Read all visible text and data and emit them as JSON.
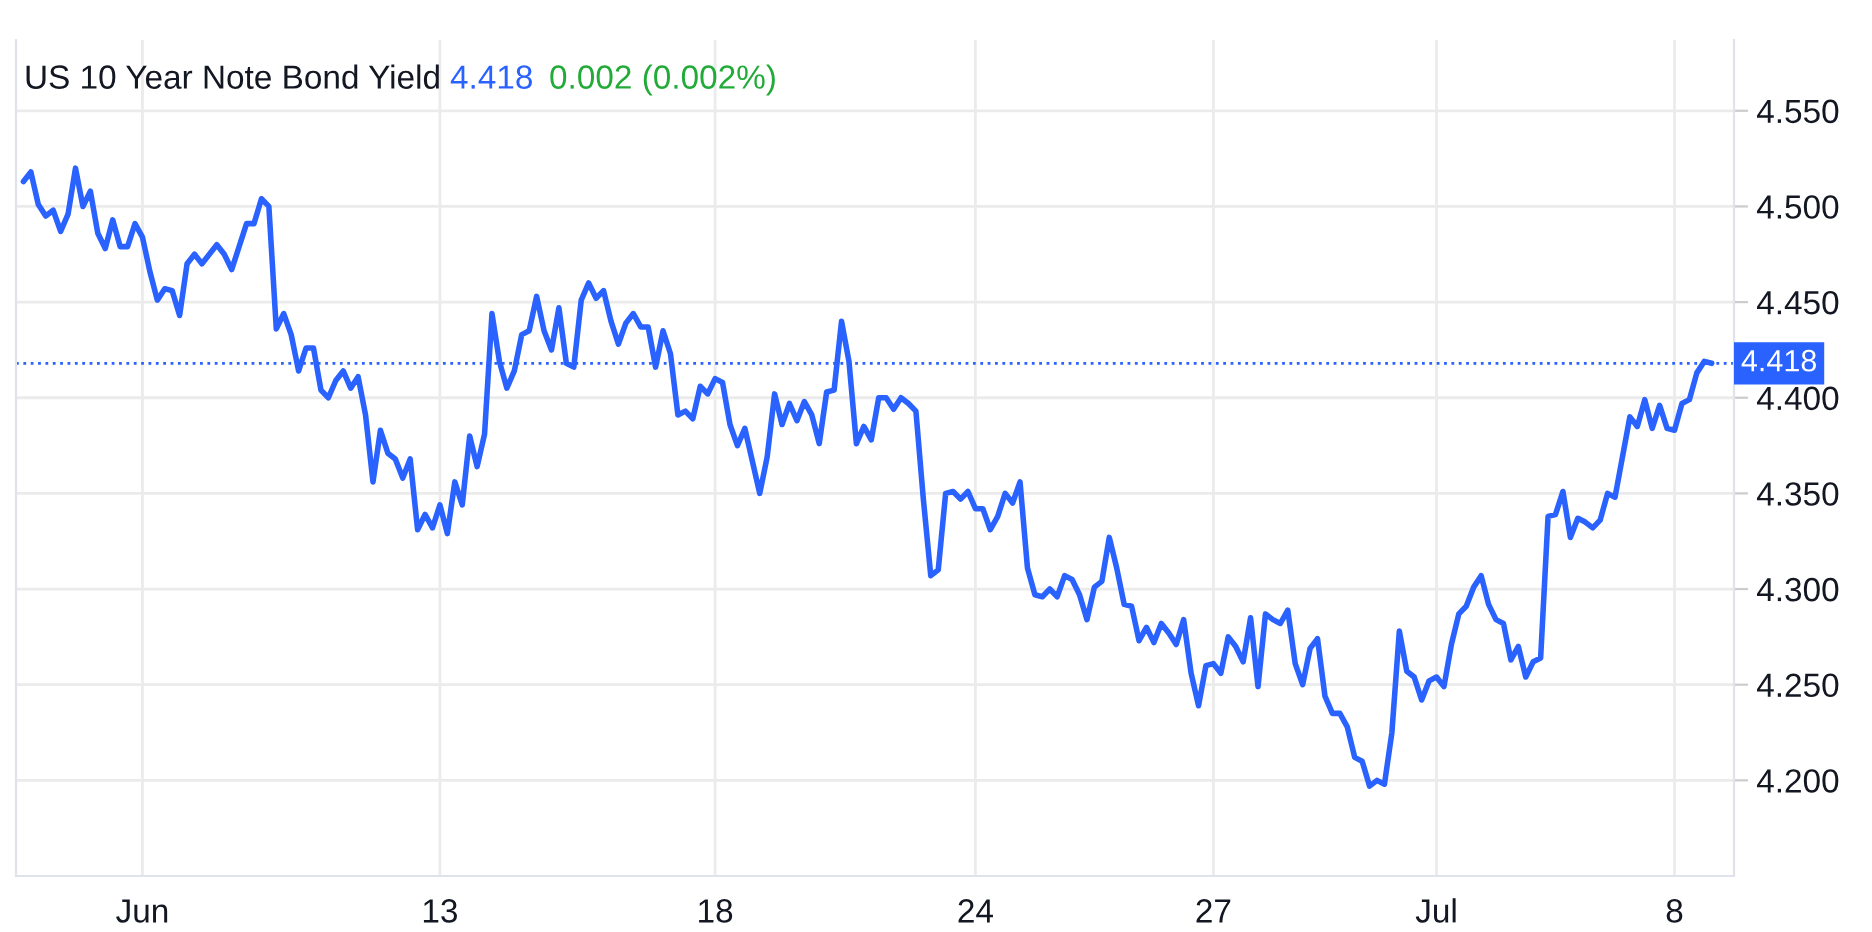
{
  "chart_data": {
    "type": "line",
    "title": "US 10 Year Note Bond Yield",
    "annotations": [
      "4.418",
      "0.002 (0.002%)"
    ],
    "categories": [
      null,
      null,
      null,
      null,
      null,
      null,
      null,
      null,
      null,
      null,
      null,
      null,
      null,
      null,
      null,
      null,
      "Jun",
      null,
      null,
      null,
      null,
      null,
      null,
      null,
      null,
      null,
      null,
      null,
      null,
      null,
      null,
      null,
      null,
      null,
      null,
      null,
      null,
      null,
      null,
      null,
      null,
      null,
      null,
      null,
      null,
      null,
      null,
      null,
      null,
      null,
      null,
      null,
      null,
      null,
      null,
      null,
      "13",
      null,
      null,
      null,
      null,
      null,
      null,
      null,
      null,
      null,
      null,
      null,
      null,
      null,
      null,
      null,
      null,
      null,
      null,
      null,
      null,
      null,
      null,
      null,
      null,
      null,
      null,
      null,
      null,
      null,
      null,
      null,
      null,
      null,
      null,
      null,
      null,
      "18",
      null,
      null,
      null,
      null,
      null,
      null,
      null,
      null,
      null,
      null,
      null,
      null,
      null,
      null,
      null,
      null,
      null,
      null,
      null,
      null,
      null,
      null,
      null,
      null,
      null,
      null,
      null,
      null,
      null,
      null,
      null,
      null,
      null,
      null,
      "24",
      null,
      null,
      null,
      null,
      null,
      null,
      null,
      null,
      null,
      null,
      null,
      null,
      null,
      null,
      null,
      null,
      null,
      null,
      null,
      null,
      null,
      null,
      null,
      null,
      null,
      null,
      null,
      null,
      null,
      null,
      null,
      "27",
      null,
      null,
      null,
      null,
      null,
      null,
      null,
      null,
      null,
      null,
      null,
      null,
      null,
      null,
      null,
      null,
      null,
      null,
      null,
      null,
      null,
      null,
      null,
      null,
      null,
      null,
      null,
      null,
      null,
      "Jul",
      null,
      null,
      null,
      null,
      null,
      null,
      null,
      null,
      null,
      null,
      null,
      null,
      null,
      null,
      null,
      null,
      null,
      null,
      null,
      null,
      null,
      null,
      null,
      null,
      null,
      null,
      null,
      null,
      null,
      null,
      null,
      "8",
      null,
      null,
      null,
      null,
      null
    ],
    "ylim": [
      4.15,
      4.587
    ],
    "yticks": [
      {
        "value": 4.2,
        "label": "4.200"
      },
      {
        "value": 4.25,
        "label": "4.250"
      },
      {
        "value": 4.3,
        "label": "4.300"
      },
      {
        "value": 4.35,
        "label": "4.350"
      },
      {
        "value": 4.4,
        "label": "4.400"
      },
      {
        "value": 4.45,
        "label": "4.450"
      },
      {
        "value": 4.5,
        "label": "4.500"
      },
      {
        "value": 4.55,
        "label": "4.550"
      }
    ],
    "grid": true,
    "marker": "none",
    "line_style": "solid",
    "ref_lines": [
      {
        "axis": "y",
        "value": 4.418,
        "label": "4.418",
        "color": "#2962ff",
        "line_style": "dotted"
      }
    ],
    "series": [
      {
        "color": "#2962ff",
        "values": [
          4.513,
          4.518,
          4.501,
          4.495,
          4.498,
          4.487,
          4.496,
          4.52,
          4.5,
          4.508,
          4.486,
          4.478,
          4.493,
          4.479,
          4.479,
          4.491,
          4.484,
          4.466,
          4.451,
          4.457,
          4.456,
          4.443,
          4.47,
          4.475,
          4.47,
          4.475,
          4.48,
          4.475,
          4.467,
          4.479,
          4.491,
          4.491,
          4.504,
          4.5,
          4.436,
          4.444,
          4.433,
          4.414,
          4.426,
          4.426,
          4.404,
          4.4,
          4.409,
          4.414,
          4.405,
          4.411,
          4.391,
          4.356,
          4.383,
          4.371,
          4.368,
          4.358,
          4.368,
          4.331,
          4.339,
          4.332,
          4.344,
          4.329,
          4.356,
          4.344,
          4.38,
          4.364,
          4.381,
          4.444,
          4.419,
          4.405,
          4.414,
          4.433,
          4.435,
          4.453,
          4.435,
          4.425,
          4.447,
          4.418,
          4.416,
          4.451,
          4.46,
          4.452,
          4.456,
          4.44,
          4.428,
          4.439,
          4.444,
          4.437,
          4.437,
          4.416,
          4.435,
          4.423,
          4.391,
          4.393,
          4.389,
          4.406,
          4.402,
          4.41,
          4.408,
          4.386,
          4.375,
          4.384,
          4.367,
          4.35,
          4.369,
          4.402,
          4.386,
          4.397,
          4.388,
          4.398,
          4.391,
          4.376,
          4.403,
          4.404,
          4.44,
          4.419,
          4.376,
          4.385,
          4.378,
          4.4,
          4.4,
          4.394,
          4.4,
          4.397,
          4.393,
          4.347,
          4.307,
          4.31,
          4.35,
          4.351,
          4.347,
          4.351,
          4.342,
          4.342,
          4.331,
          4.338,
          4.35,
          4.345,
          4.356,
          4.311,
          4.297,
          4.296,
          4.3,
          4.296,
          4.307,
          4.305,
          4.297,
          4.284,
          4.301,
          4.304,
          4.327,
          4.311,
          4.292,
          4.291,
          4.273,
          4.28,
          4.272,
          4.282,
          4.277,
          4.271,
          4.284,
          4.256,
          4.239,
          4.26,
          4.261,
          4.256,
          4.275,
          4.27,
          4.262,
          4.285,
          4.249,
          4.287,
          4.284,
          4.282,
          4.289,
          4.261,
          4.25,
          4.269,
          4.274,
          4.244,
          4.235,
          4.235,
          4.228,
          4.212,
          4.21,
          4.197,
          4.2,
          4.198,
          4.225,
          4.278,
          4.257,
          4.254,
          4.242,
          4.252,
          4.254,
          4.249,
          4.271,
          4.287,
          4.291,
          4.301,
          4.307,
          4.292,
          4.284,
          4.282,
          4.263,
          4.27,
          4.254,
          4.262,
          4.264,
          4.338,
          4.339,
          4.351,
          4.327,
          4.337,
          4.335,
          4.332,
          4.336,
          4.35,
          4.348,
          4.369,
          4.39,
          4.385,
          4.399,
          4.384,
          4.396,
          4.384,
          4.383,
          4.397,
          4.399,
          4.413,
          4.419,
          4.418
        ]
      }
    ]
  }
}
